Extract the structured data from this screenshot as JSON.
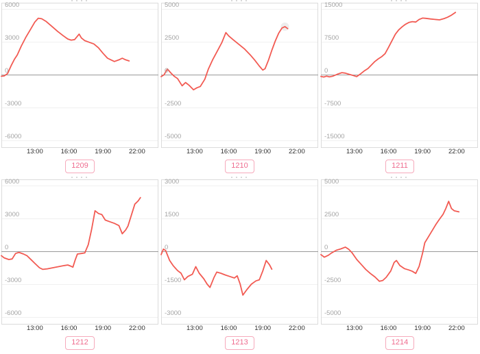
{
  "page": {
    "background": "#ffffff"
  },
  "theme": {
    "line_color": "#f25a52",
    "zero_line_color": "#999999",
    "grid_color": "#f0f0f0",
    "panel_border_color": "#dbdbdb",
    "panel_bg": "#ffffff",
    "y_label_color": "#a3a3a3",
    "x_label_color": "#2e2e2e",
    "badge_text_color": "#ef6b8e",
    "badge_border_color": "#f6a9bb",
    "hover_marker_color": "#e9e9e9"
  },
  "chart_data": [
    {
      "type": "line",
      "label": "1209",
      "x_range": [
        10.05,
        23.88
      ],
      "x_ticks": [
        {
          "t": 13,
          "label": "13:00"
        },
        {
          "t": 16,
          "label": "16:00"
        },
        {
          "t": 19,
          "label": "19:00"
        },
        {
          "t": 22,
          "label": "22:00"
        }
      ],
      "y_tick_step": 3000,
      "y_ticks": [
        {
          "v": 6000,
          "label": "6000"
        },
        {
          "v": 3000,
          "label": "3000"
        },
        {
          "v": 0,
          "label": "0"
        },
        {
          "v": -3000,
          "label": "-3000"
        },
        {
          "v": -6000,
          "label": "-6000"
        }
      ],
      "points": [
        [
          10.05,
          -150
        ],
        [
          10.3,
          -120
        ],
        [
          10.6,
          100
        ],
        [
          10.9,
          800
        ],
        [
          11.2,
          1400
        ],
        [
          11.45,
          1800
        ],
        [
          11.8,
          2600
        ],
        [
          12.2,
          3400
        ],
        [
          12.6,
          4100
        ],
        [
          13.0,
          4800
        ],
        [
          13.3,
          5150
        ],
        [
          13.6,
          5100
        ],
        [
          14.0,
          4850
        ],
        [
          14.5,
          4400
        ],
        [
          15.0,
          3950
        ],
        [
          15.5,
          3550
        ],
        [
          15.9,
          3250
        ],
        [
          16.2,
          3150
        ],
        [
          16.5,
          3200
        ],
        [
          16.9,
          3700
        ],
        [
          17.1,
          3350
        ],
        [
          17.4,
          3100
        ],
        [
          17.8,
          2950
        ],
        [
          18.2,
          2800
        ],
        [
          18.6,
          2450
        ],
        [
          19.0,
          1950
        ],
        [
          19.4,
          1500
        ],
        [
          19.7,
          1350
        ],
        [
          20.0,
          1200
        ],
        [
          20.4,
          1350
        ],
        [
          20.7,
          1500
        ],
        [
          21.0,
          1350
        ],
        [
          21.3,
          1250
        ]
      ]
    },
    {
      "type": "line",
      "label": "1210",
      "x_range": [
        10.05,
        23.88
      ],
      "x_ticks": [
        {
          "t": 13,
          "label": "13:00"
        },
        {
          "t": 16,
          "label": "16:00"
        },
        {
          "t": 19,
          "label": "19:00"
        },
        {
          "t": 22,
          "label": "22:00"
        }
      ],
      "y_tick_step": 2500,
      "y_ticks": [
        {
          "v": 5000,
          "label": "5000"
        },
        {
          "v": 2500,
          "label": "2500"
        },
        {
          "v": 0,
          "label": "0"
        },
        {
          "v": -2500,
          "label": "-2500"
        },
        {
          "v": -5000,
          "label": "-5000"
        }
      ],
      "hover_marker": {
        "t": 20.95,
        "v": 3650
      },
      "points": [
        [
          10.05,
          -150
        ],
        [
          10.3,
          -20
        ],
        [
          10.6,
          430
        ],
        [
          10.9,
          130
        ],
        [
          11.2,
          -120
        ],
        [
          11.5,
          -300
        ],
        [
          11.9,
          -850
        ],
        [
          12.2,
          -600
        ],
        [
          12.5,
          -800
        ],
        [
          12.9,
          -1150
        ],
        [
          13.2,
          -1000
        ],
        [
          13.5,
          -900
        ],
        [
          13.9,
          -350
        ],
        [
          14.2,
          400
        ],
        [
          14.6,
          1150
        ],
        [
          15.0,
          1800
        ],
        [
          15.4,
          2450
        ],
        [
          15.75,
          3200
        ],
        [
          16.0,
          2950
        ],
        [
          16.4,
          2650
        ],
        [
          16.9,
          2300
        ],
        [
          17.4,
          1950
        ],
        [
          17.9,
          1500
        ],
        [
          18.3,
          1100
        ],
        [
          18.7,
          650
        ],
        [
          19.0,
          350
        ],
        [
          19.2,
          450
        ],
        [
          19.5,
          1100
        ],
        [
          19.8,
          1850
        ],
        [
          20.1,
          2550
        ],
        [
          20.4,
          3150
        ],
        [
          20.7,
          3550
        ],
        [
          20.95,
          3650
        ],
        [
          21.2,
          3500
        ]
      ]
    },
    {
      "type": "line",
      "label": "1211",
      "x_range": [
        10.05,
        23.88
      ],
      "x_ticks": [
        {
          "t": 13,
          "label": "13:00"
        },
        {
          "t": 16,
          "label": "16:00"
        },
        {
          "t": 19,
          "label": "19:00"
        },
        {
          "t": 22,
          "label": "22:00"
        }
      ],
      "y_tick_step": 7500,
      "y_ticks": [
        {
          "v": 15000,
          "label": "15000"
        },
        {
          "v": 7500,
          "label": "7500"
        },
        {
          "v": 0,
          "label": "0"
        },
        {
          "v": -7500,
          "label": "-7500"
        },
        {
          "v": -15000,
          "label": "-15000"
        }
      ],
      "points": [
        [
          10.05,
          -400
        ],
        [
          10.3,
          -550
        ],
        [
          10.55,
          -350
        ],
        [
          10.8,
          -500
        ],
        [
          11.1,
          -350
        ],
        [
          11.5,
          100
        ],
        [
          11.9,
          450
        ],
        [
          12.2,
          350
        ],
        [
          12.5,
          100
        ],
        [
          12.9,
          -200
        ],
        [
          13.2,
          -450
        ],
        [
          13.5,
          100
        ],
        [
          13.9,
          900
        ],
        [
          14.2,
          1400
        ],
        [
          14.5,
          2200
        ],
        [
          14.8,
          3000
        ],
        [
          15.1,
          3600
        ],
        [
          15.4,
          4100
        ],
        [
          15.7,
          4800
        ],
        [
          16.0,
          6200
        ],
        [
          16.3,
          7700
        ],
        [
          16.6,
          9200
        ],
        [
          16.9,
          10200
        ],
        [
          17.2,
          10900
        ],
        [
          17.5,
          11500
        ],
        [
          17.8,
          11900
        ],
        [
          18.1,
          12100
        ],
        [
          18.4,
          12000
        ],
        [
          18.7,
          12600
        ],
        [
          19.0,
          12900
        ],
        [
          19.3,
          12850
        ],
        [
          19.7,
          12700
        ],
        [
          20.1,
          12600
        ],
        [
          20.5,
          12500
        ],
        [
          20.9,
          12800
        ],
        [
          21.2,
          13100
        ],
        [
          21.5,
          13500
        ],
        [
          21.9,
          14200
        ]
      ]
    },
    {
      "type": "line",
      "label": "1212",
      "x_range": [
        10.05,
        23.88
      ],
      "x_ticks": [
        {
          "t": 13,
          "label": "13:00"
        },
        {
          "t": 16,
          "label": "16:00"
        },
        {
          "t": 19,
          "label": "19:00"
        },
        {
          "t": 22,
          "label": "22:00"
        }
      ],
      "y_tick_step": 3000,
      "y_ticks": [
        {
          "v": 6000,
          "label": "6000"
        },
        {
          "v": 3000,
          "label": "3000"
        },
        {
          "v": 0,
          "label": "0"
        },
        {
          "v": -3000,
          "label": "-3000"
        },
        {
          "v": -6000,
          "label": "-6000"
        }
      ],
      "points": [
        [
          10.05,
          -400
        ],
        [
          10.3,
          -600
        ],
        [
          10.7,
          -750
        ],
        [
          11.0,
          -700
        ],
        [
          11.3,
          -200
        ],
        [
          11.6,
          -100
        ],
        [
          12.0,
          -250
        ],
        [
          12.3,
          -400
        ],
        [
          12.7,
          -800
        ],
        [
          13.0,
          -1100
        ],
        [
          13.4,
          -1500
        ],
        [
          13.7,
          -1650
        ],
        [
          14.1,
          -1600
        ],
        [
          14.6,
          -1500
        ],
        [
          15.1,
          -1400
        ],
        [
          15.6,
          -1300
        ],
        [
          15.9,
          -1250
        ],
        [
          16.15,
          -1350
        ],
        [
          16.35,
          -1450
        ],
        [
          16.55,
          -800
        ],
        [
          16.75,
          -250
        ],
        [
          17.1,
          -200
        ],
        [
          17.4,
          -150
        ],
        [
          17.7,
          600
        ],
        [
          18.0,
          2000
        ],
        [
          18.3,
          3700
        ],
        [
          18.6,
          3450
        ],
        [
          18.9,
          3350
        ],
        [
          19.2,
          2850
        ],
        [
          19.6,
          2700
        ],
        [
          20.0,
          2550
        ],
        [
          20.4,
          2350
        ],
        [
          20.7,
          1600
        ],
        [
          21.0,
          1950
        ],
        [
          21.2,
          2300
        ],
        [
          21.5,
          3300
        ],
        [
          21.8,
          4300
        ],
        [
          22.1,
          4600
        ],
        [
          22.3,
          4900
        ]
      ]
    },
    {
      "type": "line",
      "label": "1213",
      "x_range": [
        10.05,
        23.88
      ],
      "x_ticks": [
        {
          "t": 13,
          "label": "13:00"
        },
        {
          "t": 16,
          "label": "16:00"
        },
        {
          "t": 19,
          "label": "19:00"
        },
        {
          "t": 22,
          "label": "22:00"
        }
      ],
      "y_tick_step": 1500,
      "y_ticks": [
        {
          "v": 3000,
          "label": "3000"
        },
        {
          "v": 1500,
          "label": "1500"
        },
        {
          "v": 0,
          "label": "0"
        },
        {
          "v": -1500,
          "label": "-1500"
        },
        {
          "v": -3000,
          "label": "-3000"
        }
      ],
      "points": [
        [
          10.05,
          -150
        ],
        [
          10.25,
          100
        ],
        [
          10.45,
          30
        ],
        [
          10.8,
          -420
        ],
        [
          11.1,
          -650
        ],
        [
          11.5,
          -880
        ],
        [
          11.8,
          -1000
        ],
        [
          12.1,
          -1300
        ],
        [
          12.4,
          -1150
        ],
        [
          12.8,
          -1050
        ],
        [
          13.1,
          -700
        ],
        [
          13.4,
          -1000
        ],
        [
          13.8,
          -1250
        ],
        [
          14.1,
          -1500
        ],
        [
          14.35,
          -1650
        ],
        [
          14.7,
          -1200
        ],
        [
          14.95,
          -950
        ],
        [
          15.3,
          -1000
        ],
        [
          15.7,
          -1080
        ],
        [
          16.1,
          -1150
        ],
        [
          16.5,
          -1220
        ],
        [
          16.75,
          -1120
        ],
        [
          17.0,
          -1480
        ],
        [
          17.25,
          -2000
        ],
        [
          17.6,
          -1750
        ],
        [
          18.0,
          -1500
        ],
        [
          18.4,
          -1350
        ],
        [
          18.7,
          -1300
        ],
        [
          19.0,
          -900
        ],
        [
          19.3,
          -420
        ],
        [
          19.6,
          -620
        ],
        [
          19.8,
          -820
        ]
      ]
    },
    {
      "type": "line",
      "label": "1214",
      "x_range": [
        10.05,
        23.88
      ],
      "x_ticks": [
        {
          "t": 13,
          "label": "13:00"
        },
        {
          "t": 16,
          "label": "16:00"
        },
        {
          "t": 19,
          "label": "19:00"
        },
        {
          "t": 22,
          "label": "22:00"
        }
      ],
      "y_tick_step": 2500,
      "y_ticks": [
        {
          "v": 5000,
          "label": "5000"
        },
        {
          "v": 2500,
          "label": "2500"
        },
        {
          "v": 0,
          "label": "0"
        },
        {
          "v": -2500,
          "label": "-2500"
        },
        {
          "v": -5000,
          "label": "-5000"
        }
      ],
      "points": [
        [
          10.05,
          -250
        ],
        [
          10.35,
          -450
        ],
        [
          10.7,
          -300
        ],
        [
          11.0,
          -120
        ],
        [
          11.4,
          80
        ],
        [
          11.8,
          180
        ],
        [
          12.2,
          320
        ],
        [
          12.5,
          150
        ],
        [
          12.8,
          -120
        ],
        [
          13.2,
          -620
        ],
        [
          13.6,
          -1000
        ],
        [
          14.0,
          -1380
        ],
        [
          14.4,
          -1680
        ],
        [
          14.8,
          -1950
        ],
        [
          15.2,
          -2280
        ],
        [
          15.5,
          -2220
        ],
        [
          15.8,
          -1980
        ],
        [
          16.2,
          -1500
        ],
        [
          16.5,
          -850
        ],
        [
          16.7,
          -700
        ],
        [
          17.0,
          -1080
        ],
        [
          17.4,
          -1320
        ],
        [
          17.8,
          -1420
        ],
        [
          18.1,
          -1520
        ],
        [
          18.4,
          -1680
        ],
        [
          18.7,
          -1150
        ],
        [
          19.0,
          -150
        ],
        [
          19.2,
          650
        ],
        [
          19.5,
          1080
        ],
        [
          19.8,
          1500
        ],
        [
          20.2,
          2080
        ],
        [
          20.5,
          2450
        ],
        [
          20.8,
          2800
        ],
        [
          21.05,
          3250
        ],
        [
          21.3,
          3800
        ],
        [
          21.55,
          3250
        ],
        [
          21.8,
          3080
        ],
        [
          22.2,
          3000
        ]
      ]
    }
  ]
}
